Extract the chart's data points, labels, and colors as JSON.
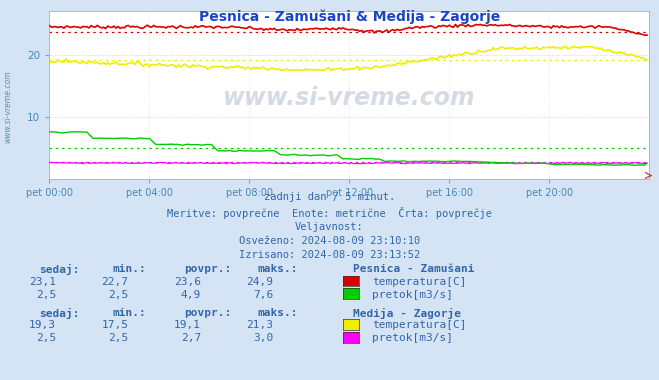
{
  "title": "Pesnica - Zamušani & Medija - Zagorje",
  "title_color": "#1a44cc",
  "background_color": "#d4e4f4",
  "plot_bg_color": "#ffffff",
  "grid_color_pink": "#ddaaaa",
  "grid_color_green": "#aaccaa",
  "xlabel_ticks": [
    "pet 00:00",
    "pet 04:00",
    "pet 08:00",
    "pet 12:00",
    "pet 16:00",
    "pet 20:00"
  ],
  "yticks": [
    10,
    20
  ],
  "ylim": [
    0,
    27
  ],
  "xlim": [
    0,
    288
  ],
  "tick_color": "#4488bb",
  "info_lines": [
    "zadnji dan / 5 minut.",
    "Meritve: povprečne  Enote: metrične  Črta: povprečje",
    "Veljavnost:",
    "Osveženo: 2024-08-09 23:10:10",
    "Izrisano: 2024-08-09 23:13:52"
  ],
  "table_header": [
    "sedaj:",
    "min.:",
    "povpr.:",
    "maks.:"
  ],
  "station1_name": "Pesnica - Zamušani",
  "station1_rows": [
    {
      "label": "temperatura[C]",
      "color": "#dd0000",
      "vals": [
        "23,1",
        "22,7",
        "23,6",
        "24,9"
      ]
    },
    {
      "label": "pretok[m3/s]",
      "color": "#00cc00",
      "vals": [
        "2,5",
        "2,5",
        "4,9",
        "7,6"
      ]
    }
  ],
  "station2_name": "Medija - Zagorje",
  "station2_rows": [
    {
      "label": "temperatura[C]",
      "color": "#eeee00",
      "vals": [
        "19,3",
        "17,5",
        "19,1",
        "21,3"
      ]
    },
    {
      "label": "pretok[m3/s]",
      "color": "#ff00ff",
      "vals": [
        "2,5",
        "2,5",
        "2,7",
        "3,0"
      ]
    }
  ],
  "n_points": 288,
  "pesnica_temp_avg": 23.6,
  "pesnica_flow_avg": 4.9,
  "medija_temp_avg": 19.1,
  "medija_flow_avg": 2.7,
  "text_color": "#3366aa",
  "side_text": "www.si-vreme.com"
}
